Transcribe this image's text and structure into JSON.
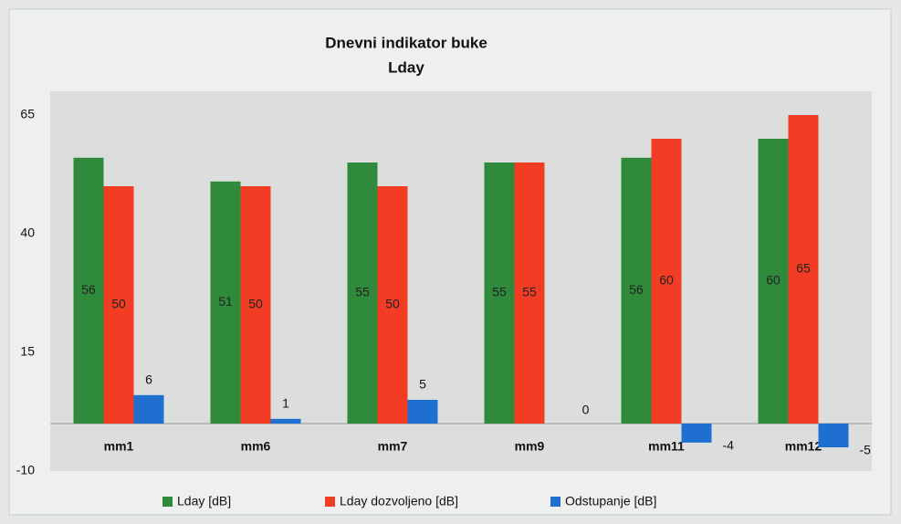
{
  "chart_data": {
    "type": "bar",
    "title": "Dnevni indikator buke",
    "subtitle": "Lday",
    "categories": [
      "mm1",
      "mm6",
      "mm7",
      "mm9",
      "mm11",
      "mm12"
    ],
    "series": [
      {
        "name": "Lday [dB]",
        "color": "#2f8a3c",
        "values": [
          56,
          51,
          55,
          55,
          56,
          60
        ]
      },
      {
        "name": "Lday dozvoljeno [dB]",
        "color": "#f23c24",
        "values": [
          50,
          50,
          50,
          55,
          60,
          65
        ]
      },
      {
        "name": "Odstupanje [dB]",
        "color": "#1f6fd0",
        "values": [
          6,
          1,
          5,
          0,
          -4,
          -5
        ]
      }
    ],
    "ylim": [
      -10,
      70
    ],
    "yticks": [
      -10,
      15,
      40,
      65
    ],
    "grid": false,
    "legend": "bottom"
  }
}
